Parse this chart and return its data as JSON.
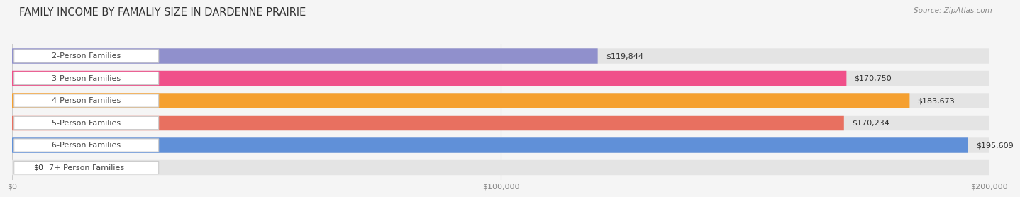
{
  "title": "FAMILY INCOME BY FAMALIY SIZE IN DARDENNE PRAIRIE",
  "source": "Source: ZipAtlas.com",
  "categories": [
    "2-Person Families",
    "3-Person Families",
    "4-Person Families",
    "5-Person Families",
    "6-Person Families",
    "7+ Person Families"
  ],
  "values": [
    119844,
    170750,
    183673,
    170234,
    195609,
    0
  ],
  "bar_colors": [
    "#9090cc",
    "#f0508a",
    "#f5a030",
    "#e87060",
    "#6090d8",
    "#c8b8e0"
  ],
  "value_labels": [
    "$119,844",
    "$170,750",
    "$183,673",
    "$170,234",
    "$195,609",
    "$0"
  ],
  "xmax": 200000,
  "xlabel_ticks": [
    0,
    100000,
    200000
  ],
  "xlabel_labels": [
    "$0",
    "$100,000",
    "$200,000"
  ],
  "background_color": "#f5f5f5",
  "bar_bg_color": "#e4e4e4",
  "title_fontsize": 10.5,
  "label_fontsize": 8,
  "value_fontsize": 8,
  "source_fontsize": 7.5
}
